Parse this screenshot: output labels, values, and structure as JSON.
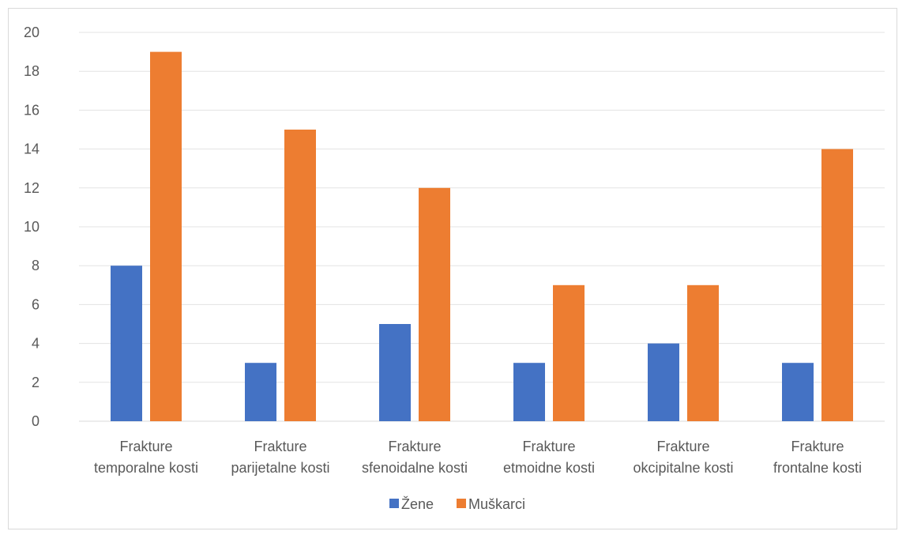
{
  "chart_data": {
    "type": "bar",
    "categories": [
      [
        "Frakture",
        "temporalne kosti"
      ],
      [
        "Frakture",
        "parijetalne kosti"
      ],
      [
        "Frakture",
        "sfenoidalne kosti"
      ],
      [
        "Frakture",
        "etmoidne kosti"
      ],
      [
        "Frakture",
        "okcipitalne kosti"
      ],
      [
        "Frakture",
        "frontalne kosti"
      ]
    ],
    "series": [
      {
        "name": "Žene",
        "color": "#4472C4",
        "values": [
          8,
          3,
          5,
          3,
          4,
          3
        ]
      },
      {
        "name": "Muškarci",
        "color": "#ED7D31",
        "values": [
          19,
          15,
          12,
          7,
          7,
          14
        ]
      }
    ],
    "yticks": [
      "0",
      "2",
      "4",
      "6",
      "8",
      "10",
      "12",
      "14",
      "16",
      "18",
      "20"
    ],
    "ylim": [
      0,
      20
    ],
    "grid": true,
    "legend": "bottom"
  }
}
